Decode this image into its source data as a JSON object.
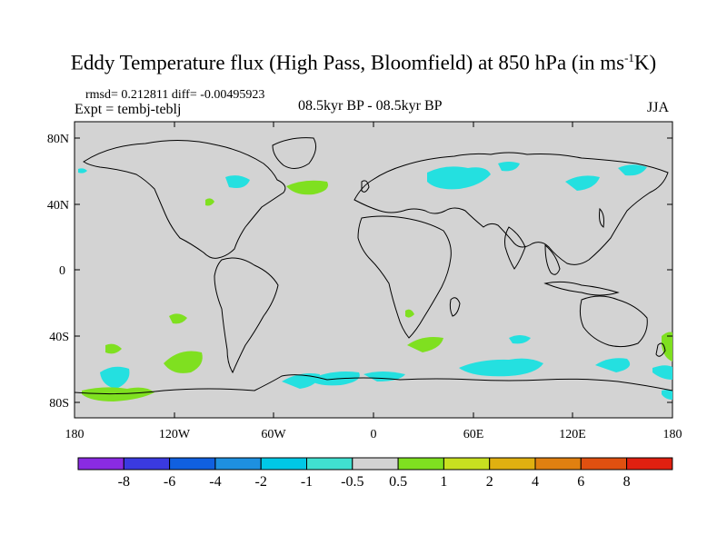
{
  "title": {
    "main": "Eddy Temperature flux (High Pass, Bloomfield) at 850 hPa (in ms",
    "sup": "-1",
    "end": "K)"
  },
  "stats": "rmsd= 0.212811 diff= -0.00495923",
  "expt": "Expt = tembj-teblj",
  "subtitle": "08.5kyr BP - 08.5kyr BP",
  "season": "JJA",
  "lat_ticks": [
    "80N",
    "40N",
    "0",
    "40S",
    "80S"
  ],
  "lon_ticks": [
    "180",
    "120W",
    "60W",
    "0",
    "60E",
    "120E",
    "180"
  ],
  "colors": {
    "ocean_land": "#d3d3d3",
    "coast": "#000000",
    "cyan": "#24e0e0",
    "green": "#7fe020"
  },
  "colorbar": {
    "labels": [
      "-8",
      "-6",
      "-4",
      "-2",
      "-1",
      "-0.5",
      "0.5",
      "1",
      "2",
      "4",
      "6",
      "8"
    ],
    "colors": [
      "#8a2be2",
      "#3a3ae0",
      "#1060e0",
      "#1e90e0",
      "#00c8e6",
      "#40e0d0",
      "#d3d3d3",
      "#7fe020",
      "#c8e020",
      "#e0b010",
      "#e08010",
      "#e05010",
      "#e02010"
    ]
  }
}
